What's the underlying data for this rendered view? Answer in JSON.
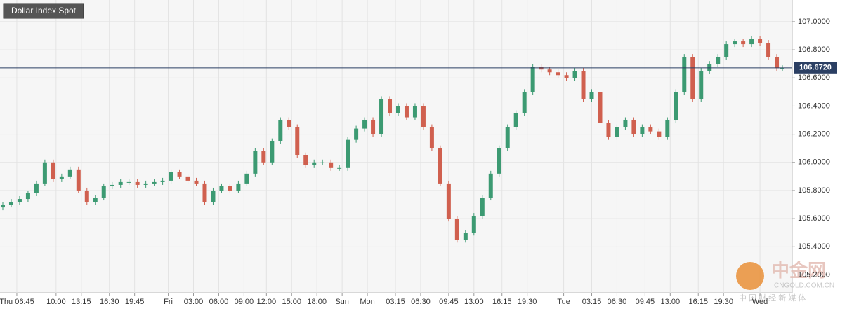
{
  "chart_data": {
    "type": "candlestick",
    "title": "Dollar Index Spot",
    "x": [
      0,
      3,
      6,
      9,
      12,
      15,
      18,
      21,
      24,
      27,
      30,
      33,
      36,
      39,
      42,
      45,
      48,
      51,
      54,
      57,
      60,
      63,
      66,
      69,
      72,
      75,
      78,
      81,
      84,
      87,
      90,
      93,
      96,
      99,
      102,
      105,
      108,
      111,
      114,
      117,
      120,
      123,
      126,
      129,
      132,
      135,
      138,
      141,
      144,
      147,
      150,
      153,
      156,
      159,
      162,
      165,
      168,
      171,
      174,
      177,
      180,
      183,
      186,
      189,
      192,
      195,
      198,
      201,
      204,
      207,
      210,
      213,
      216,
      219,
      222,
      225,
      228,
      231,
      234,
      237,
      240,
      243,
      246,
      249,
      252,
      255,
      258,
      261,
      264,
      267,
      270,
      273,
      276,
      278
    ],
    "open": [
      105.68,
      105.7,
      105.72,
      105.74,
      105.78,
      105.85,
      106.0,
      105.88,
      105.9,
      105.95,
      105.8,
      105.72,
      105.75,
      105.83,
      105.84,
      105.86,
      105.86,
      105.84,
      105.85,
      105.86,
      105.87,
      105.93,
      105.9,
      105.87,
      105.85,
      105.72,
      105.8,
      105.83,
      105.8,
      105.85,
      105.92,
      106.08,
      106.0,
      106.15,
      106.3,
      106.25,
      106.05,
      105.98,
      106.0,
      106.0,
      105.96,
      105.96,
      106.16,
      106.24,
      106.3,
      106.2,
      106.45,
      106.35,
      106.4,
      106.32,
      106.4,
      106.25,
      106.1,
      105.85,
      105.6,
      105.45,
      105.5,
      105.62,
      105.75,
      105.92,
      106.1,
      106.25,
      106.35,
      106.5,
      106.68,
      106.66,
      106.64,
      106.62,
      106.6,
      106.65,
      106.45,
      106.5,
      106.28,
      106.18,
      106.25,
      106.3,
      106.2,
      106.25,
      106.22,
      106.18,
      106.3,
      106.5,
      106.75,
      106.45,
      106.65,
      106.7,
      106.75,
      106.84,
      106.86,
      106.84,
      106.88,
      106.85,
      106.75,
      106.67
    ],
    "high": [
      105.72,
      105.74,
      105.76,
      105.8,
      105.87,
      106.02,
      106.02,
      105.92,
      105.97,
      105.97,
      105.82,
      105.77,
      105.85,
      105.86,
      105.88,
      105.88,
      105.88,
      105.87,
      105.88,
      105.89,
      105.95,
      105.95,
      105.92,
      105.89,
      105.87,
      105.82,
      105.85,
      105.85,
      105.87,
      105.94,
      106.1,
      106.1,
      106.17,
      106.32,
      106.32,
      106.27,
      106.07,
      106.02,
      106.02,
      106.02,
      105.98,
      106.18,
      106.26,
      106.32,
      106.32,
      106.47,
      106.47,
      106.42,
      106.42,
      106.42,
      106.42,
      106.27,
      106.12,
      105.87,
      105.62,
      105.52,
      105.64,
      105.77,
      105.94,
      106.12,
      106.27,
      106.37,
      106.52,
      106.7,
      106.7,
      106.68,
      106.66,
      106.64,
      106.67,
      106.67,
      106.52,
      106.52,
      106.3,
      106.27,
      106.32,
      106.32,
      106.27,
      106.27,
      106.24,
      106.32,
      106.52,
      106.77,
      106.77,
      106.67,
      106.72,
      106.77,
      106.86,
      106.88,
      106.88,
      106.9,
      106.9,
      106.87,
      106.77,
      106.69
    ],
    "low": [
      105.66,
      105.68,
      105.7,
      105.72,
      105.76,
      105.83,
      105.86,
      105.86,
      105.88,
      105.78,
      105.7,
      105.7,
      105.73,
      105.81,
      105.82,
      105.84,
      105.82,
      105.82,
      105.83,
      105.84,
      105.85,
      105.88,
      105.85,
      105.83,
      105.7,
      105.7,
      105.78,
      105.78,
      105.78,
      105.83,
      105.9,
      105.98,
      105.98,
      106.13,
      106.23,
      106.03,
      105.96,
      105.96,
      105.98,
      105.94,
      105.94,
      105.94,
      106.14,
      106.22,
      106.18,
      106.18,
      106.33,
      106.33,
      106.3,
      106.3,
      106.23,
      106.08,
      105.83,
      105.58,
      105.43,
      105.43,
      105.48,
      105.6,
      105.73,
      105.9,
      106.08,
      106.23,
      106.33,
      106.48,
      106.64,
      106.62,
      106.6,
      106.58,
      106.58,
      106.43,
      106.43,
      106.26,
      106.16,
      106.16,
      106.23,
      106.18,
      106.18,
      106.2,
      106.16,
      106.16,
      106.28,
      106.48,
      106.43,
      106.43,
      106.63,
      106.68,
      106.73,
      106.82,
      106.82,
      106.82,
      106.83,
      106.73,
      106.65,
      106.65
    ],
    "close": [
      105.7,
      105.72,
      105.74,
      105.78,
      105.85,
      106.0,
      105.88,
      105.9,
      105.95,
      105.8,
      105.72,
      105.75,
      105.83,
      105.84,
      105.86,
      105.86,
      105.84,
      105.85,
      105.86,
      105.87,
      105.93,
      105.9,
      105.87,
      105.85,
      105.72,
      105.8,
      105.83,
      105.8,
      105.85,
      105.92,
      106.08,
      106.0,
      106.15,
      106.3,
      106.25,
      106.05,
      105.98,
      106.0,
      106.0,
      105.96,
      105.96,
      106.16,
      106.24,
      106.3,
      106.2,
      106.45,
      106.35,
      106.4,
      106.32,
      106.4,
      106.25,
      106.1,
      105.85,
      105.6,
      105.45,
      105.5,
      105.62,
      105.75,
      105.92,
      106.1,
      106.25,
      106.35,
      106.5,
      106.68,
      106.66,
      106.64,
      106.62,
      106.6,
      106.65,
      106.45,
      106.5,
      106.28,
      106.18,
      106.25,
      106.3,
      106.2,
      106.25,
      106.22,
      106.18,
      106.3,
      106.5,
      106.75,
      106.45,
      106.65,
      106.7,
      106.75,
      106.84,
      106.86,
      106.84,
      106.88,
      106.85,
      106.75,
      106.67,
      106.67
    ],
    "up_color": "#3c9a72",
    "down_color": "#d0604f",
    "xlim": [
      -1,
      281.5
    ],
    "ylim": [
      105.073,
      107.154
    ],
    "xticks": [
      {
        "value": 5,
        "label": "Thu 06:45"
      },
      {
        "value": 19,
        "label": "10:00"
      },
      {
        "value": 28,
        "label": "13:15"
      },
      {
        "value": 38,
        "label": "16:30"
      },
      {
        "value": 47,
        "label": "19:45"
      },
      {
        "value": 59,
        "label": "Fri"
      },
      {
        "value": 68,
        "label": "03:00"
      },
      {
        "value": 77,
        "label": "06:00"
      },
      {
        "value": 86,
        "label": "09:00"
      },
      {
        "value": 94,
        "label": "12:00"
      },
      {
        "value": 103,
        "label": "15:00"
      },
      {
        "value": 112,
        "label": "18:00"
      },
      {
        "value": 121,
        "label": "Sun"
      },
      {
        "value": 130,
        "label": "Mon"
      },
      {
        "value": 140,
        "label": "03:15"
      },
      {
        "value": 149,
        "label": "06:30"
      },
      {
        "value": 159,
        "label": "09:45"
      },
      {
        "value": 168,
        "label": "13:00"
      },
      {
        "value": 178,
        "label": "16:15"
      },
      {
        "value": 187,
        "label": "19:30"
      },
      {
        "value": 200,
        "label": "Tue"
      },
      {
        "value": 210,
        "label": "03:15"
      },
      {
        "value": 219,
        "label": "06:30"
      },
      {
        "value": 229,
        "label": "09:45"
      },
      {
        "value": 238,
        "label": "13:00"
      },
      {
        "value": 248,
        "label": "16:15"
      },
      {
        "value": 257,
        "label": "19:30"
      },
      {
        "value": 270,
        "label": "Wed"
      }
    ],
    "yticks": [
      {
        "value": 105.2,
        "label": "105.2000"
      },
      {
        "value": 105.4,
        "label": "105.4000"
      },
      {
        "value": 105.6,
        "label": "105.6000"
      },
      {
        "value": 105.8,
        "label": "105.8000"
      },
      {
        "value": 106,
        "label": "106.0000"
      },
      {
        "value": 106.2,
        "label": "106.2000"
      },
      {
        "value": 106.4,
        "label": "106.4000"
      },
      {
        "value": 106.6,
        "label": "106.6000"
      },
      {
        "value": 106.8,
        "label": "106.8000"
      },
      {
        "value": 107,
        "label": "107.0000"
      }
    ],
    "last_price": {
      "value": 106.672,
      "label": "106.6720"
    },
    "grid": true
  },
  "watermark": {
    "logo": "中金网",
    "site": "CNGOLD.COM.CN",
    "tagline": "中 国 财 经 新 媒 体"
  }
}
